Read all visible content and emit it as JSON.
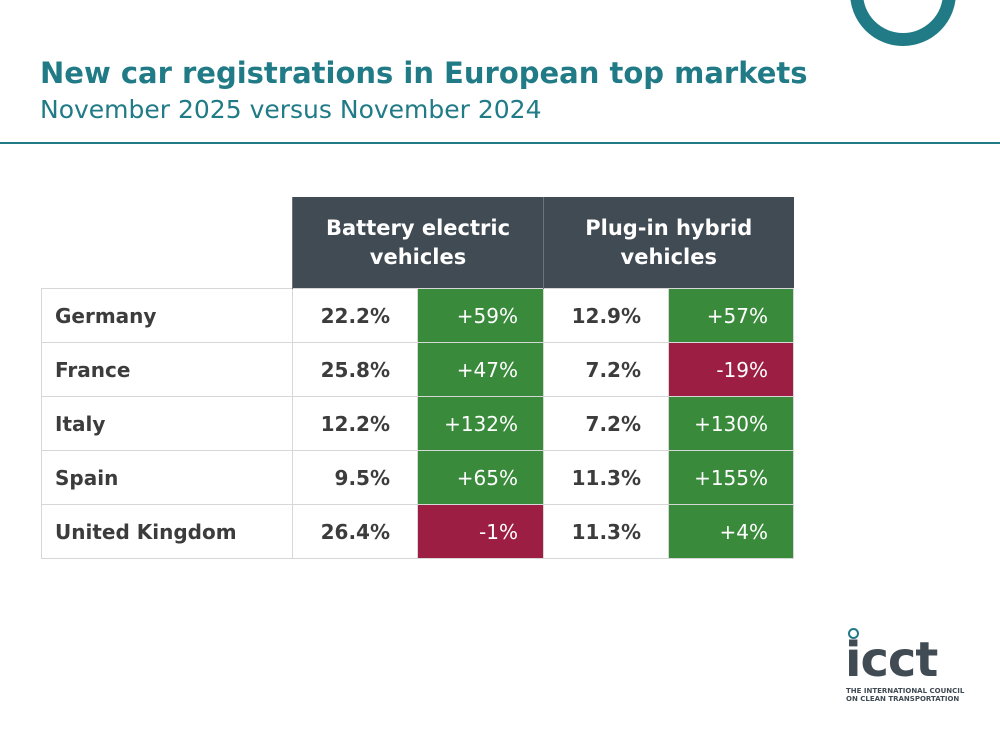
{
  "chart_data": {
    "type": "table",
    "title": "New car registrations in European top markets",
    "subtitle": "November 2025 versus November 2024",
    "column_groups": [
      {
        "label": "Battery electric vehicles"
      },
      {
        "label": "Plug-in hybrid vehicles"
      }
    ],
    "rows": [
      {
        "country": "Germany",
        "bev_share": "22.2%",
        "bev_change": "+59%",
        "bev_trend": "positive",
        "phev_share": "12.9%",
        "phev_change": "+57%",
        "phev_trend": "positive"
      },
      {
        "country": "France",
        "bev_share": "25.8%",
        "bev_change": "+47%",
        "bev_trend": "positive",
        "phev_share": "7.2%",
        "phev_change": "-19%",
        "phev_trend": "negative"
      },
      {
        "country": "Italy",
        "bev_share": "12.2%",
        "bev_change": "+132%",
        "bev_trend": "positive",
        "phev_share": "7.2%",
        "phev_change": "+130%",
        "phev_trend": "positive"
      },
      {
        "country": "Spain",
        "bev_share": "9.5%",
        "bev_change": "+65%",
        "bev_trend": "positive",
        "phev_share": "11.3%",
        "phev_change": "+155%",
        "phev_trend": "positive"
      },
      {
        "country": "United Kingdom",
        "bev_share": "26.4%",
        "bev_change": "-1%",
        "bev_trend": "negative",
        "phev_share": "11.3%",
        "phev_change": "+4%",
        "phev_trend": "positive"
      }
    ]
  },
  "colors": {
    "brand_teal": "#207b87",
    "header_dark": "#414b53",
    "positive_green": "#3a8a3c",
    "negative_red": "#9c1e42"
  },
  "logo": {
    "wordmark": "icct",
    "tagline_line1": "THE INTERNATIONAL COUNCIL",
    "tagline_line2": "ON CLEAN TRANSPORTATION"
  }
}
